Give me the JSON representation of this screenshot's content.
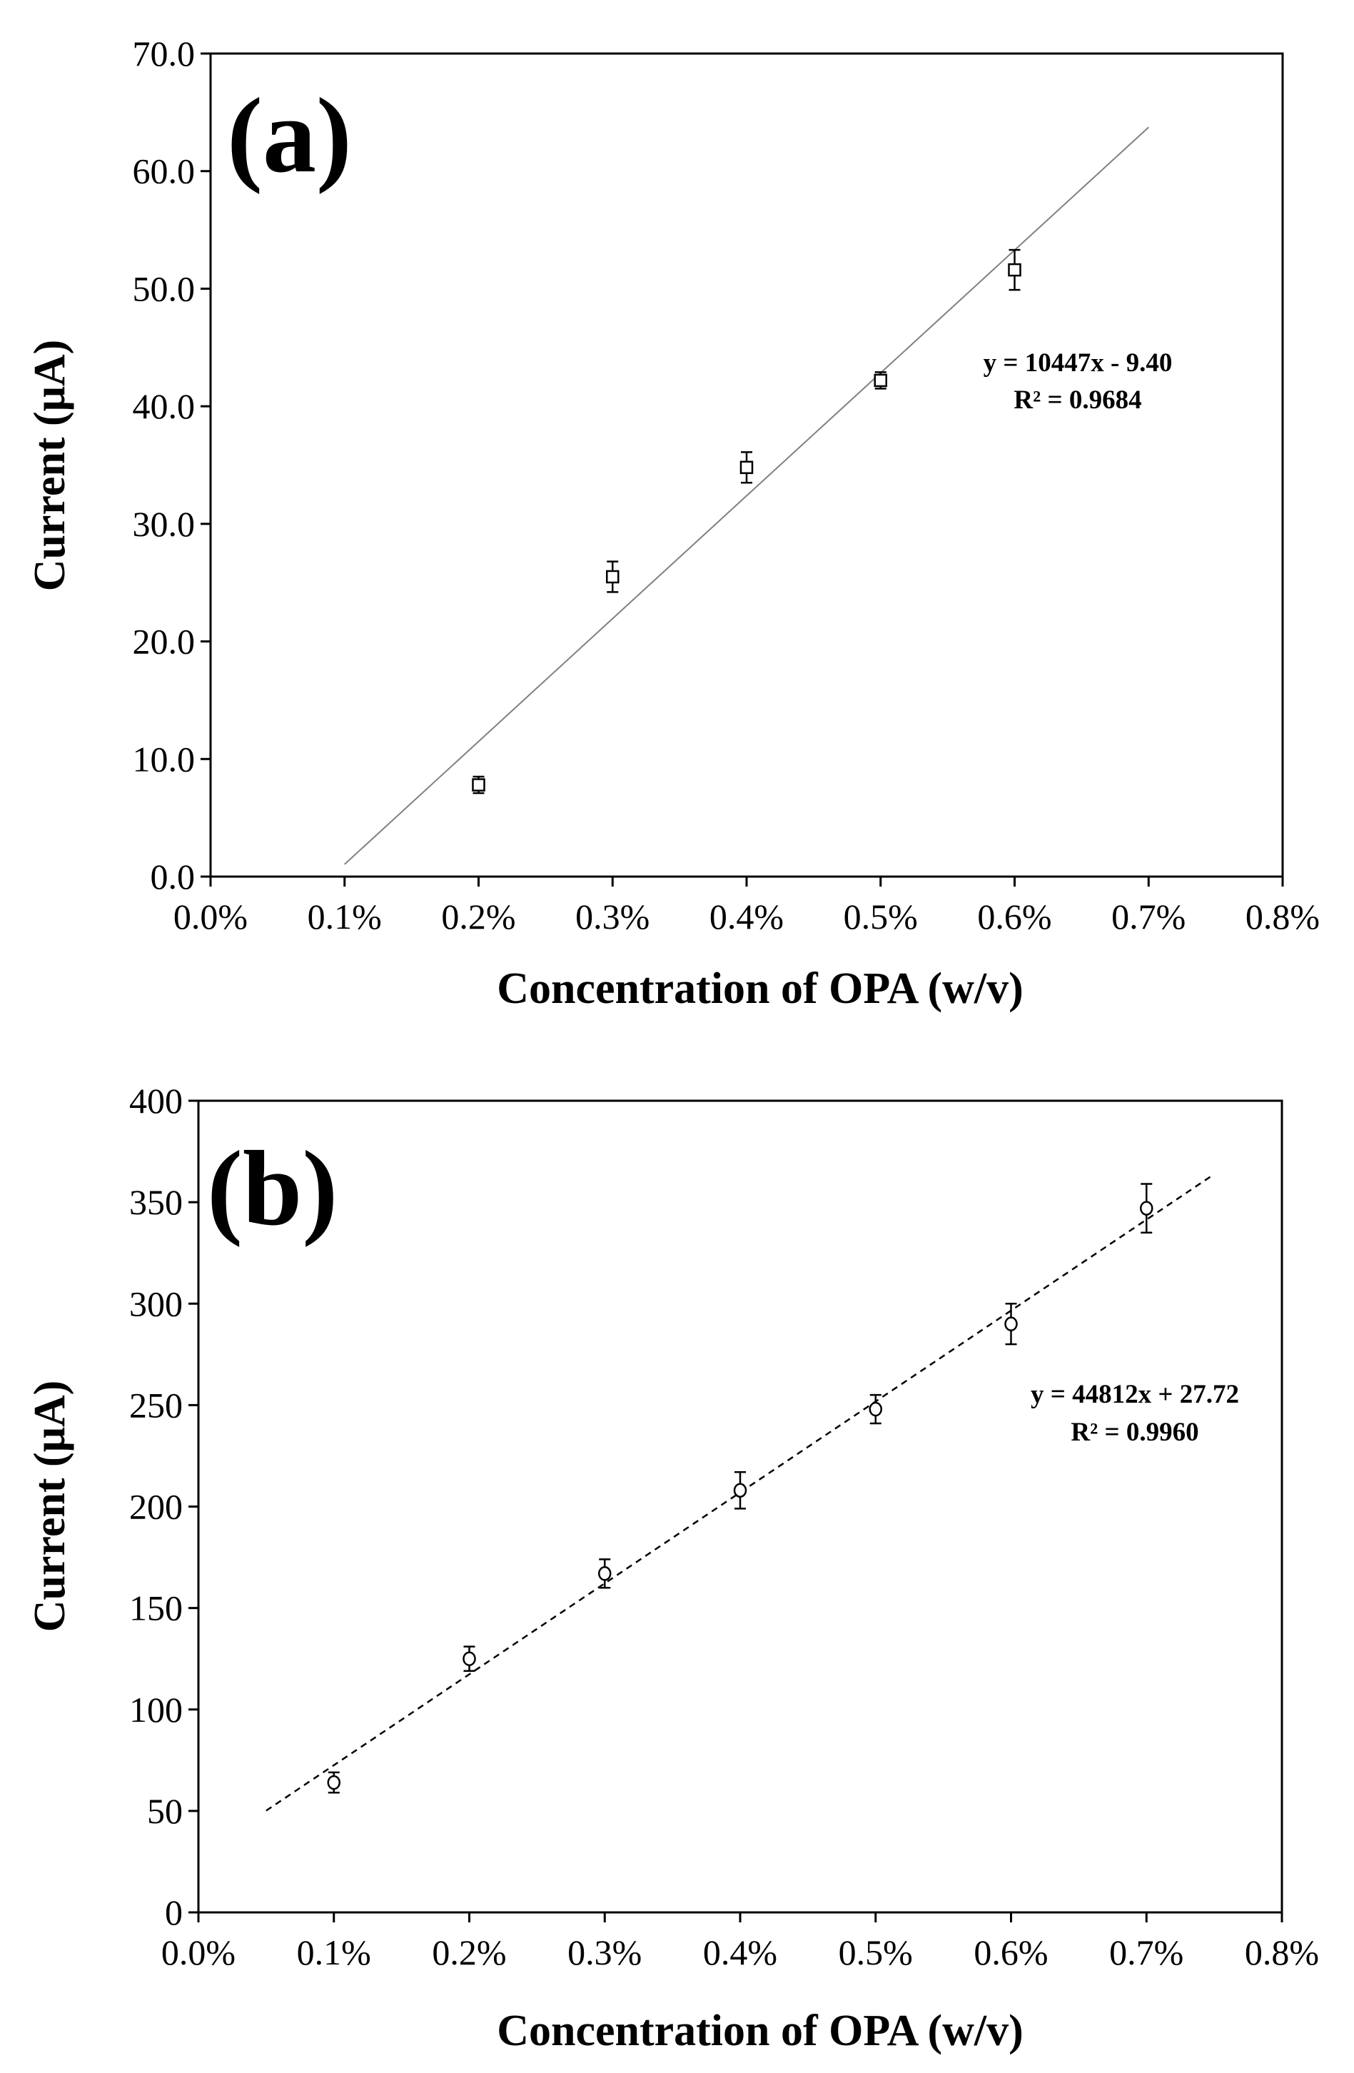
{
  "chart_data": [
    {
      "type": "scatter",
      "panel_label": "(a)",
      "x": [
        0.002,
        0.003,
        0.004,
        0.005,
        0.006
      ],
      "series": [
        {
          "name": "Current",
          "marker": "square",
          "values": [
            7.8,
            25.5,
            34.8,
            42.2,
            51.6
          ],
          "error": [
            0.7,
            1.3,
            1.3,
            0.7,
            1.7
          ]
        }
      ],
      "trendline": {
        "style": "solid",
        "color": "#808080",
        "slope": 10447,
        "intercept": -9.4,
        "x_range": [
          0.001,
          0.007
        ],
        "equation": "y = 10447x - 9.40",
        "r2": "R² = 0.9684"
      },
      "xlabel": "Concentration of OPA (w/v)",
      "ylabel": "Current (μA)",
      "xlim": [
        0,
        0.008
      ],
      "ylim": [
        0,
        70
      ],
      "xticks": [
        "0.0%",
        "0.1%",
        "0.2%",
        "0.3%",
        "0.4%",
        "0.5%",
        "0.6%",
        "0.7%",
        "0.8%"
      ],
      "yticks": [
        "0.0",
        "10.0",
        "20.0",
        "30.0",
        "40.0",
        "50.0",
        "60.0",
        "70.0"
      ],
      "grid": false
    },
    {
      "type": "scatter",
      "panel_label": "(b)",
      "x": [
        0.001,
        0.002,
        0.003,
        0.004,
        0.005,
        0.006,
        0.007
      ],
      "series": [
        {
          "name": "Current",
          "marker": "circle",
          "values": [
            64,
            125,
            167,
            208,
            248,
            290,
            347
          ],
          "error": [
            5,
            6,
            7,
            9,
            7,
            10,
            12
          ]
        }
      ],
      "trendline": {
        "style": "dashed",
        "color": "#000000",
        "slope": 44812,
        "intercept": 27.72,
        "x_range": [
          0.0005,
          0.0075
        ],
        "equation": "y = 44812x + 27.72",
        "r2": "R² = 0.9960"
      },
      "xlabel": "Concentration of OPA (w/v)",
      "ylabel": "Current (μA)",
      "xlim": [
        0,
        0.008
      ],
      "ylim": [
        0,
        400
      ],
      "xticks": [
        "0.0%",
        "0.1%",
        "0.2%",
        "0.3%",
        "0.4%",
        "0.5%",
        "0.6%",
        "0.7%",
        "0.8%"
      ],
      "yticks": [
        "0",
        "50",
        "100",
        "150",
        "200",
        "250",
        "300",
        "350",
        "400"
      ],
      "grid": false
    }
  ]
}
